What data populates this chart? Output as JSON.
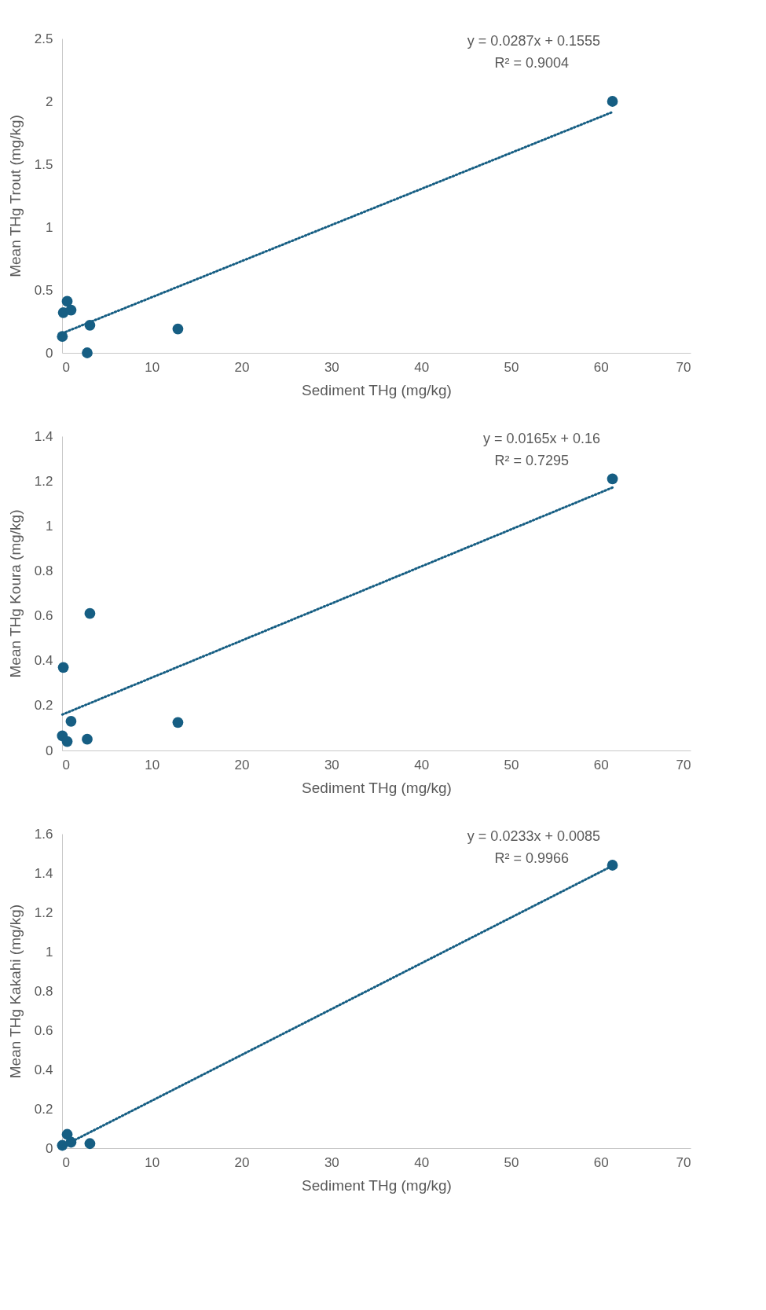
{
  "chart_data": [
    {
      "type": "scatter",
      "xlabel": "Sediment THg (mg/kg)",
      "ylabel": "Mean THg Trout (mg/kg)",
      "xlim": [
        0,
        70
      ],
      "xticks": [
        0,
        10,
        20,
        30,
        40,
        50,
        60,
        70
      ],
      "ylim": [
        0,
        2.5
      ],
      "yticks": [
        0,
        0.5,
        1,
        1.5,
        2,
        2.5
      ],
      "grid": false,
      "annotations": [
        "y = 0.0287x + 0.1555",
        "R² = 0.9004"
      ],
      "series": [
        {
          "type": "scatter",
          "color": "#165e83",
          "marker": "circle",
          "x": [
            0.57,
            0.14,
            1.0,
            3.1,
            0.03,
            2.8,
            12.9,
            61.3
          ],
          "values": [
            0.41,
            0.32,
            0.34,
            0.22,
            0.13,
            0.0,
            0.19,
            2.0
          ]
        },
        {
          "type": "line",
          "color": "#165e83",
          "line_style": "dotted",
          "marker": "none",
          "x": [
            0.03,
            61.3
          ],
          "values": [
            0.156,
            1.915
          ]
        }
      ]
    },
    {
      "type": "scatter",
      "xlabel": "Sediment THg (mg/kg)",
      "ylabel": "Mean THg Koura (mg/kg)",
      "xlim": [
        0,
        70
      ],
      "xticks": [
        0,
        10,
        20,
        30,
        40,
        50,
        60,
        70
      ],
      "ylim": [
        0,
        1.4
      ],
      "yticks": [
        0,
        0.2,
        0.4,
        0.6,
        0.8,
        1,
        1.2,
        1.4
      ],
      "grid": false,
      "annotations": [
        "y = 0.0165x + 0.16",
        "R² = 0.7295"
      ],
      "series": [
        {
          "type": "scatter",
          "color": "#165e83",
          "marker": "circle",
          "x": [
            3.1,
            0.14,
            1.0,
            0.03,
            0.57,
            2.8,
            12.9,
            61.3
          ],
          "values": [
            0.61,
            0.37,
            0.13,
            0.065,
            0.04,
            0.05,
            0.125,
            1.21
          ]
        },
        {
          "type": "line",
          "color": "#165e83",
          "line_style": "dotted",
          "marker": "none",
          "x": [
            0.03,
            61.3
          ],
          "values": [
            0.16,
            1.171
          ]
        }
      ]
    },
    {
      "type": "scatter",
      "xlabel": "Sediment THg (mg/kg)",
      "ylabel": "Mean THg Kakahi (mg/kg)",
      "xlim": [
        0,
        70
      ],
      "xticks": [
        0,
        10,
        20,
        30,
        40,
        50,
        60,
        70
      ],
      "ylim": [
        0,
        1.6
      ],
      "yticks": [
        0,
        0.2,
        0.4,
        0.6,
        0.8,
        1,
        1.2,
        1.4,
        1.6
      ],
      "grid": false,
      "annotations": [
        "y = 0.0233x + 0.0085",
        "R² = 0.9966"
      ],
      "series": [
        {
          "type": "scatter",
          "color": "#165e83",
          "marker": "circle",
          "x": [
            0.57,
            0.03,
            1.0,
            3.1,
            61.3
          ],
          "values": [
            0.07,
            0.014,
            0.03,
            0.023,
            1.44
          ]
        },
        {
          "type": "line",
          "color": "#165e83",
          "line_style": "dotted",
          "marker": "none",
          "x": [
            0.03,
            61.3
          ],
          "values": [
            0.009,
            1.437
          ]
        }
      ]
    }
  ]
}
